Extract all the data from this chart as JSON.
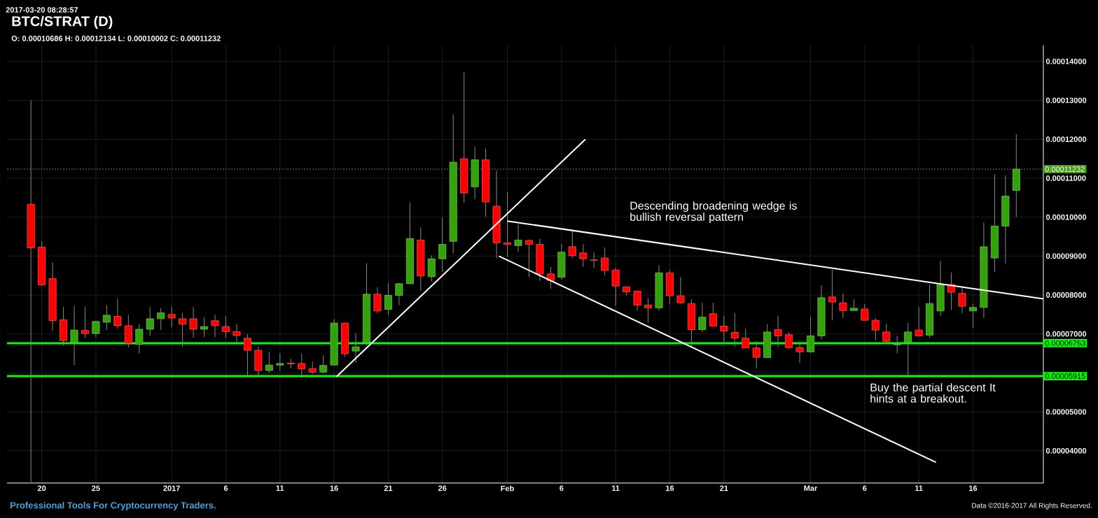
{
  "chart_data": {
    "type": "candlestick",
    "title": "BTC/STRAT (D)",
    "subtitle": "O: 0.00010686 H: 0.00012134 L: 0.00010002 C: 0.00011232",
    "x": [
      "2016-12-19",
      "2016-12-20",
      "2016-12-21",
      "2016-12-22",
      "2016-12-23",
      "2016-12-24",
      "2016-12-25",
      "2016-12-26",
      "2016-12-27",
      "2016-12-28",
      "2016-12-29",
      "2016-12-30",
      "2016-12-31",
      "2017-01-01",
      "2017-01-02",
      "2017-01-03",
      "2017-01-04",
      "2017-01-05",
      "2017-01-06",
      "2017-01-07",
      "2017-01-08",
      "2017-01-09",
      "2017-01-10",
      "2017-01-11",
      "2017-01-12",
      "2017-01-13",
      "2017-01-14",
      "2017-01-15",
      "2017-01-16",
      "2017-01-17",
      "2017-01-18",
      "2017-01-19",
      "2017-01-20",
      "2017-01-21",
      "2017-01-22",
      "2017-01-23",
      "2017-01-24",
      "2017-01-25",
      "2017-01-26",
      "2017-01-27",
      "2017-01-28",
      "2017-01-29",
      "2017-01-30",
      "2017-01-31",
      "2017-02-01",
      "2017-02-02",
      "2017-02-03",
      "2017-02-04",
      "2017-02-05",
      "2017-02-06",
      "2017-02-07",
      "2017-02-08",
      "2017-02-09",
      "2017-02-10",
      "2017-02-11",
      "2017-02-12",
      "2017-02-13",
      "2017-02-14",
      "2017-02-15",
      "2017-02-16",
      "2017-02-17",
      "2017-02-18",
      "2017-02-19",
      "2017-02-20",
      "2017-02-21",
      "2017-02-22",
      "2017-02-23",
      "2017-02-24",
      "2017-02-25",
      "2017-02-26",
      "2017-02-27",
      "2017-02-28",
      "2017-03-01",
      "2017-03-02",
      "2017-03-03",
      "2017-03-04",
      "2017-03-05",
      "2017-03-06",
      "2017-03-07",
      "2017-03-08",
      "2017-03-09",
      "2017-03-10",
      "2017-03-11",
      "2017-03-12",
      "2017-03-13",
      "2017-03-14",
      "2017-03-15",
      "2017-03-16",
      "2017-03-17",
      "2017-03-18",
      "2017-03-19",
      "2017-03-20"
    ],
    "ohlc": [
      [
        0.0001033,
        0.00013,
        3.2e-05,
        9.21e-05
      ],
      [
        9.23e-05,
        9.38e-05,
        8.23e-05,
        8.26e-05
      ],
      [
        8.42e-05,
        8.84e-05,
        7.08e-05,
        7.34e-05
      ],
      [
        7.36e-05,
        7.69e-05,
        6.7e-05,
        6.83e-05
      ],
      [
        6.78e-05,
        7.72e-05,
        6.2e-05,
        7.1e-05
      ],
      [
        7.09e-05,
        7.69e-05,
        6.9e-05,
        7.01e-05
      ],
      [
        7.01e-05,
        7.34e-05,
        6.92e-05,
        7.32e-05
      ],
      [
        7.3e-05,
        7.74e-05,
        7.1e-05,
        7.48e-05
      ],
      [
        7.45e-05,
        7.9e-05,
        7.13e-05,
        7.21e-05
      ],
      [
        7.21e-05,
        7.49e-05,
        6.65e-05,
        6.76e-05
      ],
      [
        6.73e-05,
        7.25e-05,
        6.49e-05,
        7.12e-05
      ],
      [
        7.12e-05,
        7.69e-05,
        6.95e-05,
        7.39e-05
      ],
      [
        7.39e-05,
        7.67e-05,
        7.1e-05,
        7.54e-05
      ],
      [
        7.5e-05,
        7.69e-05,
        7.17e-05,
        7.41e-05
      ],
      [
        7.39e-05,
        7.54e-05,
        6.67e-05,
        7.25e-05
      ],
      [
        7.39e-05,
        7.69e-05,
        6.9e-05,
        7.12e-05
      ],
      [
        7.12e-05,
        7.43e-05,
        6.92e-05,
        7.19e-05
      ],
      [
        7.34e-05,
        7.49e-05,
        6.92e-05,
        7.21e-05
      ],
      [
        7.19e-05,
        7.45e-05,
        6.9e-05,
        7.06e-05
      ],
      [
        7.06e-05,
        7.25e-05,
        6.79e-05,
        6.96e-05
      ],
      [
        6.89e-05,
        7e-05,
        5.91e-05,
        6.58e-05
      ],
      [
        6.58e-05,
        6.68e-05,
        5.91e-05,
        6.06e-05
      ],
      [
        6.06e-05,
        6.54e-05,
        6e-05,
        6.2e-05
      ],
      [
        6.2e-05,
        6.5e-05,
        6.05e-05,
        6.24e-05
      ],
      [
        6.25e-05,
        6.36e-05,
        6.11e-05,
        6.23e-05
      ],
      [
        6.24e-05,
        6.49e-05,
        5.86e-05,
        6.1e-05
      ],
      [
        6.11e-05,
        6.29e-05,
        5.98e-05,
        6.02e-05
      ],
      [
        6.02e-05,
        6.45e-05,
        5.98e-05,
        6.19e-05
      ],
      [
        6.2e-05,
        7.38e-05,
        6.2e-05,
        7.28e-05
      ],
      [
        7.28e-05,
        7.28e-05,
        6.41e-05,
        6.49e-05
      ],
      [
        6.56e-05,
        7.02e-05,
        6.26e-05,
        6.67e-05
      ],
      [
        6.78e-05,
        8.82e-05,
        6.69e-05,
        8.02e-05
      ],
      [
        8.02e-05,
        8.2e-05,
        7.53e-05,
        7.59e-05
      ],
      [
        7.63e-05,
        8.3e-05,
        7.48e-05,
        7.99e-05
      ],
      [
        7.99e-05,
        8.31e-05,
        7.74e-05,
        8.29e-05
      ],
      [
        8.29e-05,
        0.0001037,
        8.29e-05,
        9.45e-05
      ],
      [
        9.41e-05,
        9.74e-05,
        8.11e-05,
        8.49e-05
      ],
      [
        8.47e-05,
        9.02e-05,
        8.35e-05,
        8.93e-05
      ],
      [
        8.93e-05,
        9.99e-05,
        8.6e-05,
        9.3e-05
      ],
      [
        9.38e-05,
        0.0001264,
        9.07e-05,
        0.0001141
      ],
      [
        0.000115,
        0.0001372,
        0.0001037,
        0.0001062
      ],
      [
        0.0001078,
        0.0001181,
        0.0001046,
        0.0001147
      ],
      [
        0.0001147,
        0.0001176,
        0.0001001,
        0.0001039
      ],
      [
        0.0001028,
        0.000112,
        8.94e-05,
        9.34e-05
      ],
      [
        9.34e-05,
        0.0001064,
        8.98e-05,
        9.3e-05
      ],
      [
        9.27e-05,
        9.81e-05,
        9.11e-05,
        9.41e-05
      ],
      [
        9.4e-05,
        9.42e-05,
        8.46e-05,
        9.3e-05
      ],
      [
        9.3e-05,
        9.44e-05,
        8.36e-05,
        8.54e-05
      ],
      [
        8.54e-05,
        8.72e-05,
        8.16e-05,
        8.37e-05
      ],
      [
        8.46e-05,
        9.31e-05,
        8.39e-05,
        9.1e-05
      ],
      [
        9.24e-05,
        9.69e-05,
        8.95e-05,
        9.01e-05
      ],
      [
        9.08e-05,
        9.31e-05,
        8.72e-05,
        8.93e-05
      ],
      [
        8.9e-05,
        9.1e-05,
        8.69e-05,
        8.89e-05
      ],
      [
        8.95e-05,
        9.22e-05,
        8.5e-05,
        8.63e-05
      ],
      [
        8.64e-05,
        8.7e-05,
        7.72e-05,
        8.23e-05
      ],
      [
        8.21e-05,
        8.23e-05,
        7.99e-05,
        8.08e-05
      ],
      [
        8.1e-05,
        8.1e-05,
        7.6e-05,
        7.74e-05
      ],
      [
        7.74e-05,
        7.92e-05,
        7.29e-05,
        7.67e-05
      ],
      [
        7.67e-05,
        8.77e-05,
        7.6e-05,
        8.57e-05
      ],
      [
        8.57e-05,
        8.64e-05,
        7.76e-05,
        7.98e-05
      ],
      [
        7.98e-05,
        8.46e-05,
        7.76e-05,
        7.8e-05
      ],
      [
        7.78e-05,
        7.89e-05,
        6.69e-05,
        7.11e-05
      ],
      [
        7.11e-05,
        7.8e-05,
        7.05e-05,
        7.43e-05
      ],
      [
        7.52e-05,
        7.8e-05,
        7.2e-05,
        7.2e-05
      ],
      [
        7.2e-05,
        7.47e-05,
        6.8e-05,
        7.07e-05
      ],
      [
        7.04e-05,
        7.54e-05,
        6.67e-05,
        6.89e-05
      ],
      [
        6.89e-05,
        7.14e-05,
        6.64e-05,
        6.64e-05
      ],
      [
        6.64e-05,
        6.82e-05,
        6.11e-05,
        6.4e-05
      ],
      [
        6.39e-05,
        7.25e-05,
        6.39e-05,
        7.05e-05
      ],
      [
        7.11e-05,
        7.47e-05,
        6.66e-05,
        6.95e-05
      ],
      [
        6.98e-05,
        7.04e-05,
        6.61e-05,
        6.65e-05
      ],
      [
        6.65e-05,
        6.76e-05,
        6.25e-05,
        6.54e-05
      ],
      [
        6.54e-05,
        7.44e-05,
        6.52e-05,
        6.95e-05
      ],
      [
        6.95e-05,
        8.25e-05,
        6.86e-05,
        7.93e-05
      ],
      [
        7.95e-05,
        8.65e-05,
        7.35e-05,
        7.82e-05
      ],
      [
        7.8e-05,
        8.04e-05,
        7.41e-05,
        7.6e-05
      ],
      [
        7.6e-05,
        7.89e-05,
        7.6e-05,
        7.66e-05
      ],
      [
        7.64e-05,
        7.77e-05,
        7.35e-05,
        7.35e-05
      ],
      [
        7.35e-05,
        7.41e-05,
        6.83e-05,
        7.1e-05
      ],
      [
        7.05e-05,
        7.26e-05,
        6.74e-05,
        6.81e-05
      ],
      [
        6.72e-05,
        6.95e-05,
        6.5e-05,
        6.74e-05
      ],
      [
        6.79e-05,
        7.28e-05,
        5.89e-05,
        7.05e-05
      ],
      [
        7.1e-05,
        7.69e-05,
        6.95e-05,
        6.95e-05
      ],
      [
        6.97e-05,
        8.27e-05,
        6.9e-05,
        7.78e-05
      ],
      [
        7.59e-05,
        8.88e-05,
        7.46e-05,
        8.27e-05
      ],
      [
        8.27e-05,
        8.58e-05,
        7.62e-05,
        8.07e-05
      ],
      [
        8.04e-05,
        8.23e-05,
        7.53e-05,
        7.71e-05
      ],
      [
        7.59e-05,
        7.78e-05,
        7.15e-05,
        7.68e-05
      ],
      [
        7.68e-05,
        9.86e-05,
        7.41e-05,
        9.24e-05
      ],
      [
        8.95e-05,
        0.000111,
        8.59e-05,
        9.77e-05
      ],
      [
        9.77e-05,
        0.0001108,
        8.81e-05,
        0.0001054
      ],
      [
        0.00010686,
        0.00012134,
        0.00010002,
        0.00011232
      ]
    ],
    "colors": [
      "#ff0000",
      "#ff0000",
      "#ff0000",
      "#ff0000",
      "#33a30b",
      "#ff0000",
      "#33a30b",
      "#33a30b",
      "#ff0000",
      "#ff0000",
      "#33a30b",
      "#33a30b",
      "#33a30b",
      "#ff0000",
      "#ff0000",
      "#ff0000",
      "#33a30b",
      "#ff0000",
      "#ff0000",
      "#ff0000",
      "#ff0000",
      "#ff0000",
      "#33a30b",
      "#33a30b",
      "#ff0000",
      "#ff0000",
      "#ff0000",
      "#33a30b",
      "#33a30b",
      "#ff0000",
      "#33a30b",
      "#33a30b",
      "#ff0000",
      "#33a30b",
      "#33a30b",
      "#33a30b",
      "#ff0000",
      "#33a30b",
      "#33a30b",
      "#33a30b",
      "#ff0000",
      "#33a30b",
      "#ff0000",
      "#ff0000",
      "#ff0000",
      "#33a30b",
      "#ff0000",
      "#ff0000",
      "#ff0000",
      "#33a30b",
      "#ff0000",
      "#ff0000",
      "#ff0000",
      "#ff0000",
      "#ff0000",
      "#ff0000",
      "#ff0000",
      "#ff0000",
      "#33a30b",
      "#ff0000",
      "#ff0000",
      "#ff0000",
      "#33a30b",
      "#ff0000",
      "#ff0000",
      "#ff0000",
      "#ff0000",
      "#ff0000",
      "#33a30b",
      "#ff0000",
      "#ff0000",
      "#ff0000",
      "#33a30b",
      "#33a30b",
      "#ff0000",
      "#ff0000",
      "#33a30b",
      "#ff0000",
      "#ff0000",
      "#ff0000",
      "#33a30b",
      "#33a30b",
      "#ff0000",
      "#33a30b",
      "#33a30b",
      "#ff0000",
      "#ff0000",
      "#33a30b",
      "#33a30b",
      "#33a30b",
      "#33a30b",
      "#33a30b"
    ],
    "series": [
      {
        "type": "line",
        "color": "#ffffff",
        "x": [
          "2017-01-16T05:00",
          "2017-02-08T05:00"
        ],
        "values": [
          5.9e-05,
          0.00012
        ]
      },
      {
        "type": "line",
        "color": "#ffffff",
        "x": [
          "2017-02-01",
          "2017-03-22T12:00"
        ],
        "values": [
          9.9e-05,
          7.9e-05
        ]
      },
      {
        "type": "line",
        "color": "#ffffff",
        "x": [
          "2017-01-31T05:00",
          "2017-03-12T14:00"
        ],
        "values": [
          9e-05,
          3.7e-05
        ]
      }
    ],
    "ref_lines": [
      {
        "axis": "y",
        "value": 0.00011232,
        "label": "0.00011232",
        "color": "#4a9e1a",
        "line_style": "dotted"
      },
      {
        "axis": "y",
        "value": 6.763e-05,
        "label": "0.00006763",
        "color": "#00ff00"
      },
      {
        "axis": "y",
        "value": 5.915e-05,
        "label": "0.00005915",
        "color": "#00ff00"
      }
    ],
    "annotations": [
      "2017-03-20 08:28:57",
      "Descending broadening wedge is bullish reversal pattern",
      "Buy the partial descent It hints at a breakout.",
      "Professional Tools For Cryptocurrency Traders.",
      "Data ©2016-2017 All Rights Reserved."
    ],
    "xlim": [
      "2016-12-16T19:00",
      "2017-03-22T12:00"
    ],
    "ylim": [
      3.17e-05,
      0.0001441
    ],
    "xticks": [
      {
        "value": "2016-12-20",
        "label": "20"
      },
      {
        "value": "2016-12-25",
        "label": "25"
      },
      {
        "value": "2017-01-01",
        "label": "2017"
      },
      {
        "value": "2017-01-06",
        "label": "6"
      },
      {
        "value": "2017-01-11",
        "label": "11"
      },
      {
        "value": "2017-01-16",
        "label": "16"
      },
      {
        "value": "2017-01-21",
        "label": "21"
      },
      {
        "value": "2017-01-26",
        "label": "26"
      },
      {
        "value": "2017-02-01",
        "label": "Feb"
      },
      {
        "value": "2017-02-06",
        "label": "6"
      },
      {
        "value": "2017-02-11",
        "label": "11"
      },
      {
        "value": "2017-02-16",
        "label": "16"
      },
      {
        "value": "2017-02-21",
        "label": "21"
      },
      {
        "value": "2017-03-01",
        "label": "Mar"
      },
      {
        "value": "2017-03-06",
        "label": "6"
      },
      {
        "value": "2017-03-11",
        "label": "11"
      },
      {
        "value": "2017-03-16",
        "label": "16"
      }
    ],
    "yticks": [
      {
        "value": 4e-05,
        "label": "0.00004000"
      },
      {
        "value": 5e-05,
        "label": "0.00005000"
      },
      {
        "value": 6e-05,
        "label": null
      },
      {
        "value": 7e-05,
        "label": "0.00007000"
      },
      {
        "value": 8e-05,
        "label": "0.00008000"
      },
      {
        "value": 9e-05,
        "label": "0.00009000"
      },
      {
        "value": 0.0001,
        "label": "0.00010000"
      },
      {
        "value": 0.00011,
        "label": "0.00011000"
      },
      {
        "value": 0.00012,
        "label": "0.00012000"
      },
      {
        "value": 0.00013,
        "label": "0.00013000"
      },
      {
        "value": 0.00014,
        "label": "0.00014000"
      }
    ],
    "grid": true
  }
}
